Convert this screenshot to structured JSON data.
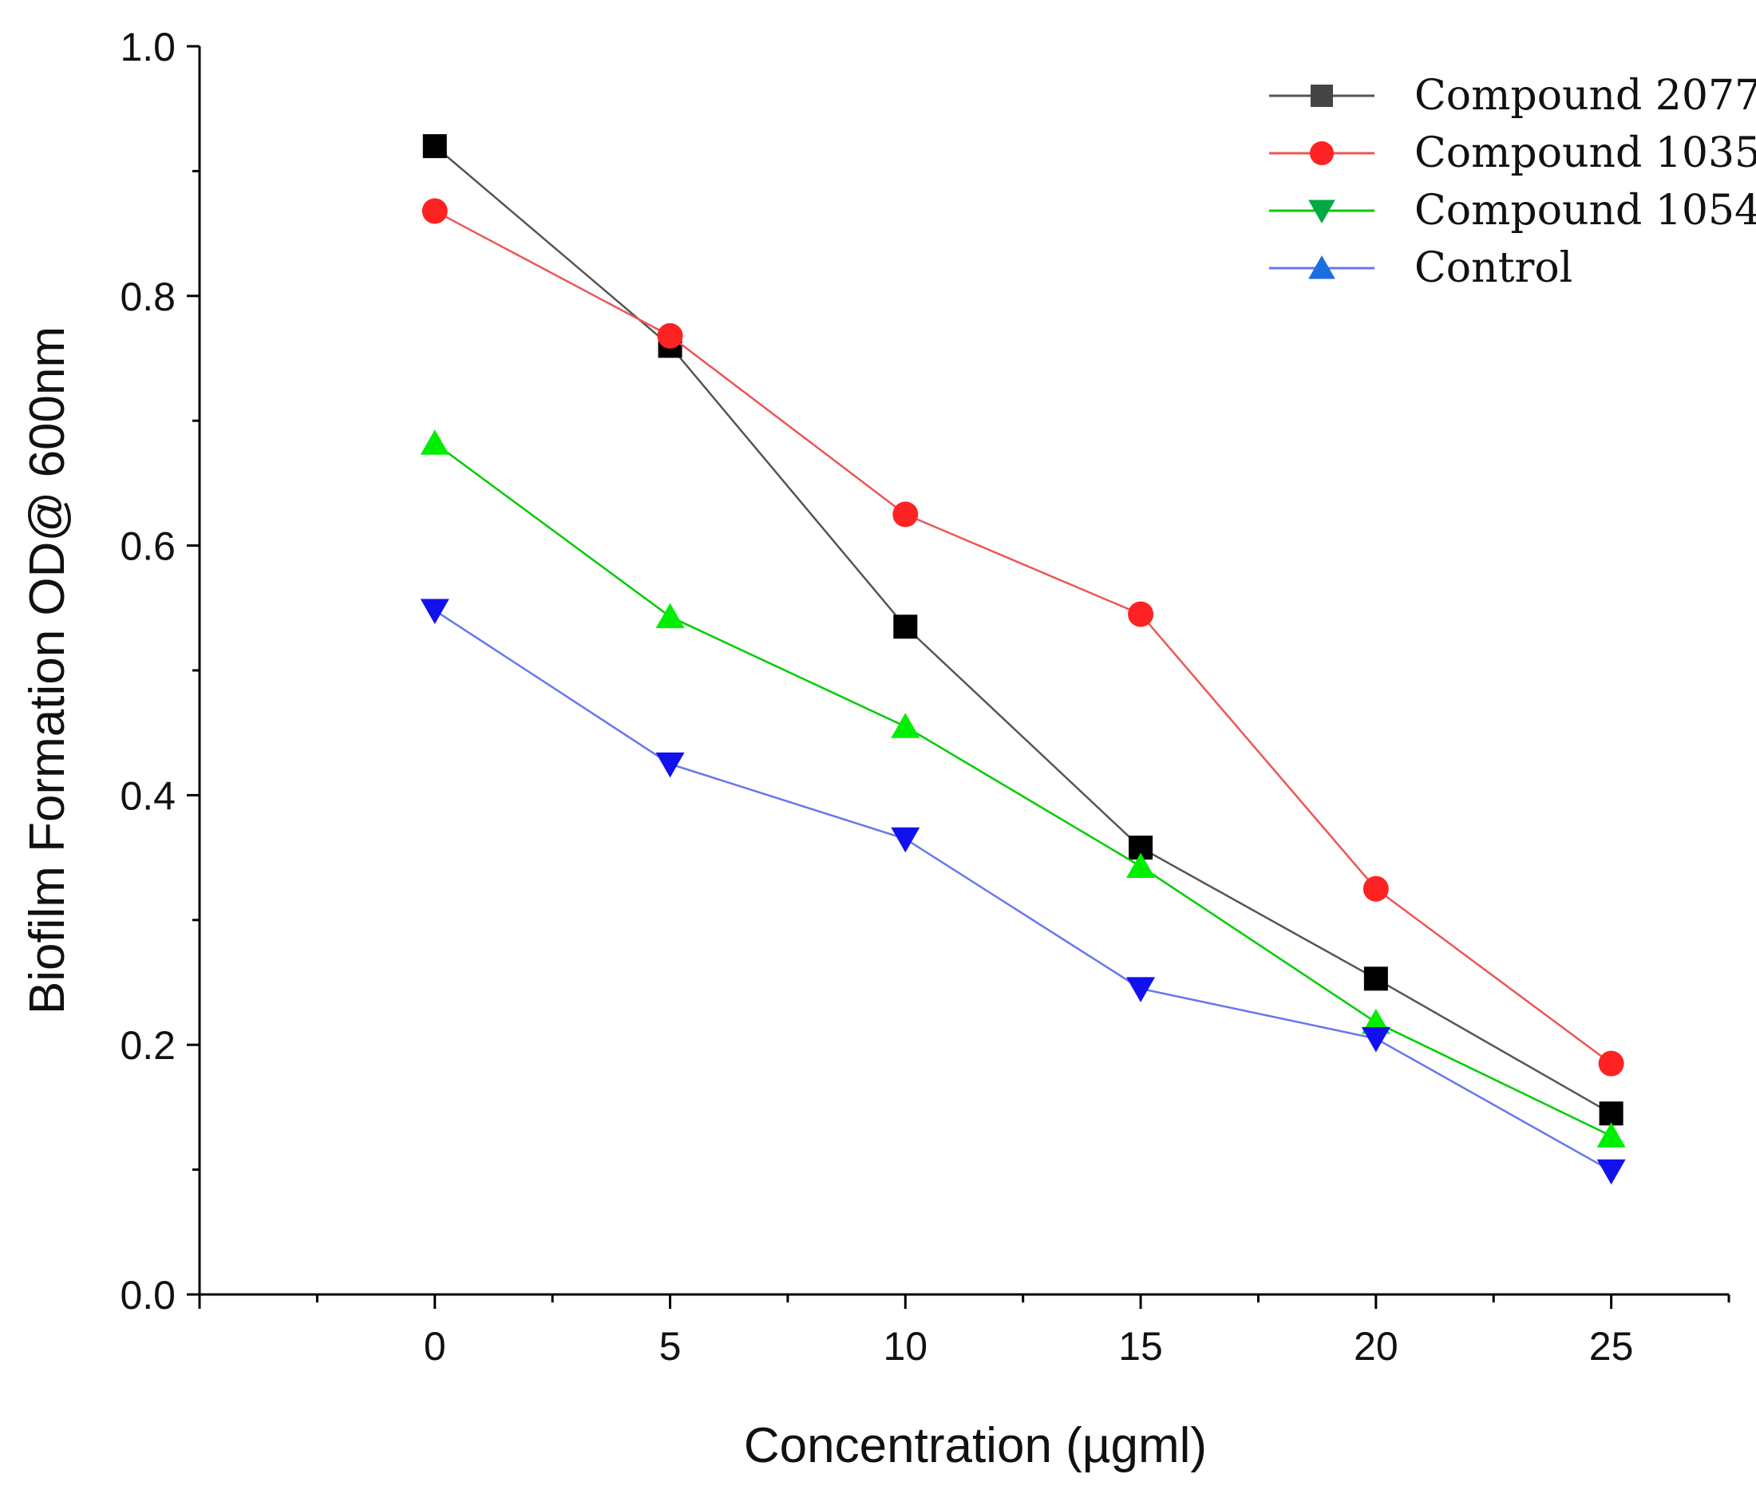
{
  "chart_data": {
    "type": "line",
    "title": "",
    "xlabel": "Concentration (µgml)",
    "ylabel": "Biofilm Formation OD@ 600nm",
    "x": [
      0,
      5,
      10,
      15,
      20,
      25
    ],
    "xlim": [
      -5,
      27.5
    ],
    "ylim": [
      0,
      1.0
    ],
    "x_ticks": [
      "0",
      "5",
      "10",
      "15",
      "20",
      "25"
    ],
    "y_ticks": [
      "0.0",
      "0.2",
      "0.4",
      "0.6",
      "0.8",
      "1.0"
    ],
    "grid": false,
    "legend_position": "top-right",
    "series": [
      {
        "name": "Compound 2077",
        "line_color": "#555555",
        "marker_color": "#000000",
        "legend_color": "#444444",
        "marker": "square",
        "values": [
          0.92,
          0.76,
          0.535,
          0.358,
          0.253,
          0.145
        ]
      },
      {
        "name": "Compound 1035",
        "line_color": "#ee5555",
        "marker_color": "#ff2222",
        "legend_color": "#ff2222",
        "marker": "circle",
        "values": [
          0.868,
          0.768,
          0.625,
          0.545,
          0.325,
          0.185
        ]
      },
      {
        "name": "Compound 1054",
        "line_color": "#00cc00",
        "marker_color": "#00ee00",
        "legend_color": "#00aa44",
        "marker": "triangle-down",
        "values": [
          0.682,
          0.543,
          0.455,
          0.343,
          0.218,
          0.127
        ]
      },
      {
        "name": "Control",
        "line_color": "#6677ee",
        "marker_color": "#1111ee",
        "legend_color": "#1a6ee0",
        "marker": "triangle-up",
        "values": [
          0.548,
          0.425,
          0.365,
          0.245,
          0.205,
          0.099
        ]
      }
    ]
  }
}
